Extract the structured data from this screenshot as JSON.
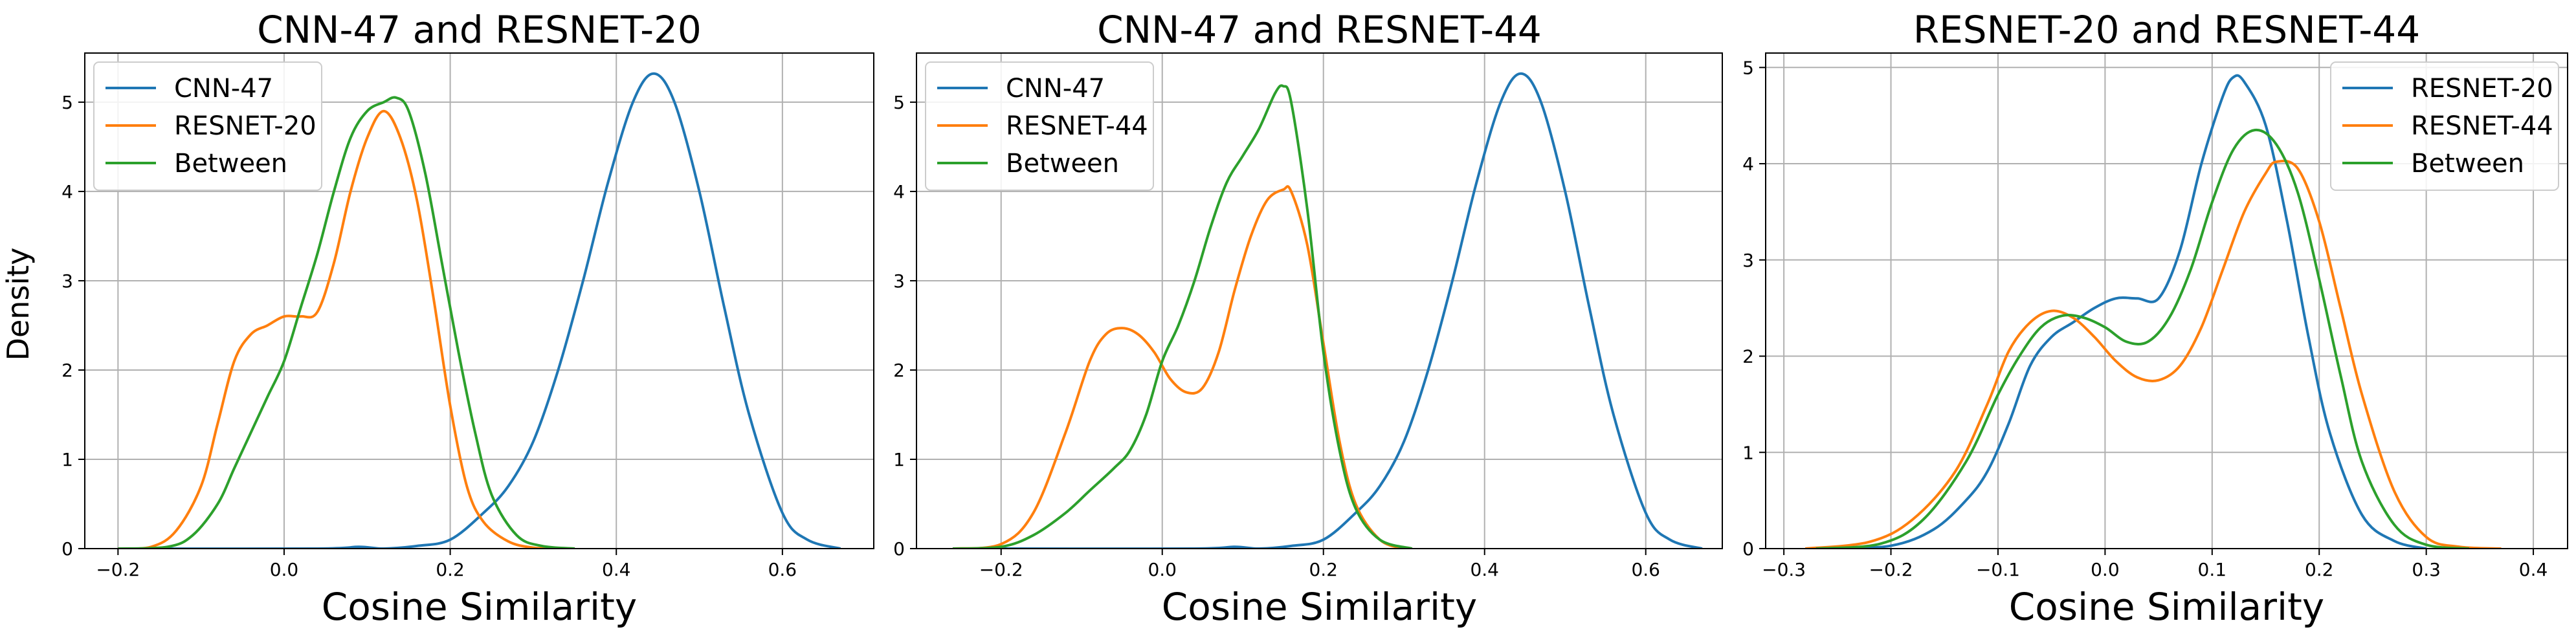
{
  "figure": {
    "ylabel": "Density",
    "xlabel": "Cosine Similarity"
  },
  "chart_data": [
    {
      "type": "line",
      "subtype": "kde",
      "title": "CNN-47 and RESNET-20",
      "xlabel": "Cosine Similarity",
      "ylabel": "Density",
      "xlim": [
        -0.24,
        0.71
      ],
      "ylim": [
        0,
        5.55
      ],
      "xticks": [
        -0.2,
        0.0,
        0.2,
        0.4,
        0.6
      ],
      "xtick_labels": [
        "−0.2",
        "0.0",
        "0.2",
        "0.4",
        "0.6"
      ],
      "yticks": [
        0,
        1,
        2,
        3,
        4,
        5
      ],
      "ytick_labels": [
        "0",
        "1",
        "2",
        "3",
        "4",
        "5"
      ],
      "grid": true,
      "legend_position": "top-left",
      "series": [
        {
          "name": "CNN-47",
          "color": "#1f77b4",
          "x": [
            -0.2,
            0.04,
            0.09,
            0.12,
            0.16,
            0.2,
            0.24,
            0.27,
            0.3,
            0.33,
            0.36,
            0.39,
            0.42,
            0.445,
            0.47,
            0.5,
            0.53,
            0.56,
            0.6,
            0.63,
            0.67
          ],
          "y": [
            0,
            0,
            0.02,
            0.0,
            0.03,
            0.1,
            0.4,
            0.7,
            1.2,
            2.0,
            3.0,
            4.1,
            5.0,
            5.32,
            5.0,
            4.0,
            2.7,
            1.5,
            0.4,
            0.1,
            0
          ]
        },
        {
          "name": "RESNET-20",
          "color": "#ff7f0e",
          "x": [
            -0.2,
            -0.16,
            -0.13,
            -0.1,
            -0.08,
            -0.06,
            -0.04,
            -0.02,
            0.0,
            0.02,
            0.04,
            0.06,
            0.08,
            0.1,
            0.12,
            0.14,
            0.16,
            0.18,
            0.2,
            0.22,
            0.24,
            0.27,
            0.3,
            0.33
          ],
          "y": [
            0,
            0.02,
            0.2,
            0.7,
            1.4,
            2.1,
            2.4,
            2.5,
            2.6,
            2.6,
            2.65,
            3.2,
            4.0,
            4.6,
            4.9,
            4.6,
            3.9,
            2.8,
            1.6,
            0.7,
            0.3,
            0.08,
            0.01,
            0
          ]
        },
        {
          "name": "Between",
          "color": "#2ca02c",
          "x": [
            -0.2,
            -0.14,
            -0.11,
            -0.08,
            -0.06,
            -0.04,
            -0.02,
            0.0,
            0.02,
            0.04,
            0.06,
            0.08,
            0.1,
            0.12,
            0.135,
            0.15,
            0.17,
            0.19,
            0.21,
            0.23,
            0.25,
            0.28,
            0.31,
            0.35
          ],
          "y": [
            0,
            0.02,
            0.15,
            0.5,
            0.9,
            1.3,
            1.7,
            2.1,
            2.7,
            3.3,
            4.0,
            4.6,
            4.9,
            5.0,
            5.05,
            4.9,
            4.2,
            3.2,
            2.2,
            1.3,
            0.6,
            0.15,
            0.03,
            0
          ]
        }
      ]
    },
    {
      "type": "line",
      "subtype": "kde",
      "title": "CNN-47 and RESNET-44",
      "xlabel": "Cosine Similarity",
      "ylim": [
        0,
        5.55
      ],
      "xlim": [
        -0.305,
        0.695
      ],
      "xticks": [
        -0.2,
        0.0,
        0.2,
        0.4,
        0.6
      ],
      "xtick_labels": [
        "−0.2",
        "0.0",
        "0.2",
        "0.4",
        "0.6"
      ],
      "yticks": [
        0,
        1,
        2,
        3,
        4,
        5
      ],
      "ytick_labels": [
        "0",
        "1",
        "2",
        "3",
        "4",
        "5"
      ],
      "grid": true,
      "legend_position": "top-left",
      "series": [
        {
          "name": "CNN-47",
          "color": "#1f77b4",
          "x": [
            -0.2,
            0.04,
            0.09,
            0.12,
            0.16,
            0.2,
            0.24,
            0.27,
            0.3,
            0.33,
            0.36,
            0.39,
            0.42,
            0.445,
            0.47,
            0.5,
            0.53,
            0.56,
            0.6,
            0.63,
            0.67
          ],
          "y": [
            0,
            0,
            0.02,
            0.0,
            0.03,
            0.1,
            0.4,
            0.7,
            1.2,
            2.0,
            3.0,
            4.1,
            5.0,
            5.32,
            5.0,
            4.0,
            2.7,
            1.5,
            0.4,
            0.1,
            0
          ]
        },
        {
          "name": "RESNET-44",
          "color": "#ff7f0e",
          "x": [
            -0.26,
            -0.2,
            -0.16,
            -0.12,
            -0.09,
            -0.07,
            -0.05,
            -0.03,
            -0.01,
            0.01,
            0.03,
            0.05,
            0.07,
            0.09,
            0.11,
            0.13,
            0.15,
            0.16,
            0.18,
            0.2,
            0.22,
            0.24,
            0.27,
            0.3
          ],
          "y": [
            0,
            0.05,
            0.4,
            1.3,
            2.1,
            2.4,
            2.47,
            2.4,
            2.2,
            1.9,
            1.75,
            1.8,
            2.2,
            2.9,
            3.5,
            3.9,
            4.02,
            4.0,
            3.4,
            2.3,
            1.2,
            0.5,
            0.1,
            0
          ]
        },
        {
          "name": "Between",
          "color": "#2ca02c",
          "x": [
            -0.26,
            -0.2,
            -0.16,
            -0.12,
            -0.09,
            -0.06,
            -0.04,
            -0.02,
            0.0,
            0.02,
            0.04,
            0.06,
            0.08,
            0.1,
            0.12,
            0.14,
            0.15,
            0.16,
            0.18,
            0.2,
            0.22,
            0.24,
            0.27,
            0.31
          ],
          "y": [
            0,
            0.02,
            0.15,
            0.4,
            0.65,
            0.9,
            1.1,
            1.5,
            2.1,
            2.5,
            3.0,
            3.6,
            4.1,
            4.4,
            4.7,
            5.1,
            5.18,
            5.0,
            3.8,
            2.2,
            1.1,
            0.45,
            0.1,
            0
          ]
        }
      ]
    },
    {
      "type": "line",
      "subtype": "kde",
      "title": "RESNET-20 and RESNET-44",
      "xlabel": "Cosine Similarity",
      "ylim": [
        0,
        5.15
      ],
      "xlim": [
        -0.317,
        0.432
      ],
      "xticks": [
        -0.3,
        -0.2,
        -0.1,
        0.0,
        0.1,
        0.2,
        0.3,
        0.4
      ],
      "xtick_labels": [
        "−0.3",
        "−0.2",
        "−0.1",
        "0.0",
        "0.1",
        "0.2",
        "0.3",
        "0.4"
      ],
      "yticks": [
        0,
        1,
        2,
        3,
        4,
        5
      ],
      "ytick_labels": [
        "0",
        "1",
        "2",
        "3",
        "4",
        "5"
      ],
      "grid": true,
      "legend_position": "top-right",
      "series": [
        {
          "name": "RESNET-20",
          "color": "#1f77b4",
          "x": [
            -0.26,
            -0.2,
            -0.16,
            -0.13,
            -0.11,
            -0.09,
            -0.07,
            -0.05,
            -0.03,
            -0.01,
            0.01,
            0.03,
            0.05,
            0.07,
            0.09,
            0.11,
            0.12,
            0.13,
            0.15,
            0.17,
            0.19,
            0.21,
            0.24,
            0.27,
            0.3
          ],
          "y": [
            0,
            0.03,
            0.2,
            0.5,
            0.8,
            1.3,
            1.9,
            2.2,
            2.35,
            2.5,
            2.6,
            2.6,
            2.6,
            3.1,
            4.0,
            4.7,
            4.9,
            4.85,
            4.4,
            3.4,
            2.2,
            1.2,
            0.35,
            0.08,
            0
          ]
        },
        {
          "name": "RESNET-44",
          "color": "#ff7f0e",
          "x": [
            -0.28,
            -0.22,
            -0.18,
            -0.14,
            -0.11,
            -0.09,
            -0.07,
            -0.05,
            -0.03,
            -0.01,
            0.01,
            0.03,
            0.05,
            0.07,
            0.09,
            0.11,
            0.13,
            0.15,
            0.16,
            0.18,
            0.2,
            0.22,
            0.24,
            0.27,
            0.3,
            0.33,
            0.37
          ],
          "y": [
            0,
            0.07,
            0.3,
            0.8,
            1.5,
            2.05,
            2.35,
            2.47,
            2.4,
            2.2,
            1.95,
            1.78,
            1.75,
            1.9,
            2.3,
            2.9,
            3.5,
            3.9,
            4.02,
            3.95,
            3.4,
            2.5,
            1.6,
            0.6,
            0.12,
            0.02,
            0
          ]
        },
        {
          "name": "Between",
          "color": "#2ca02c",
          "x": [
            -0.27,
            -0.21,
            -0.17,
            -0.13,
            -0.1,
            -0.08,
            -0.06,
            -0.04,
            -0.02,
            0.0,
            0.02,
            0.04,
            0.06,
            0.08,
            0.1,
            0.12,
            0.14,
            0.16,
            0.18,
            0.2,
            0.22,
            0.24,
            0.27,
            0.3,
            0.34
          ],
          "y": [
            0,
            0.05,
            0.3,
            0.9,
            1.6,
            2.0,
            2.3,
            2.42,
            2.4,
            2.3,
            2.15,
            2.15,
            2.4,
            2.9,
            3.6,
            4.15,
            4.35,
            4.2,
            3.7,
            2.8,
            1.8,
            0.9,
            0.25,
            0.04,
            0
          ]
        }
      ]
    }
  ]
}
